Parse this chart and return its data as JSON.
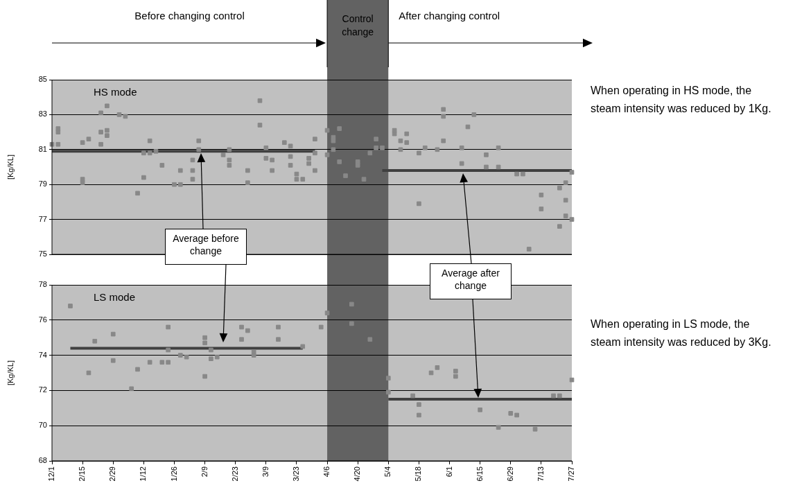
{
  "chart_data": [
    {
      "type": "scatter",
      "title": "HS mode",
      "ylabel": "[Kg/KL]",
      "ylim": [
        75,
        85
      ],
      "yticks": [
        75,
        77,
        79,
        81,
        83,
        85
      ],
      "grid": "y",
      "tick_labels": "y",
      "marker": "square",
      "categories": [
        "12/1",
        null,
        null,
        null,
        null,
        "2/15",
        null,
        null,
        null,
        null,
        "2/29",
        null,
        null,
        null,
        null,
        "1/12",
        null,
        null,
        null,
        null,
        "1/26",
        null,
        null,
        null,
        null,
        "2/9",
        null,
        null,
        null,
        null,
        "2/23",
        null,
        null,
        null,
        null,
        "3/9",
        null,
        null,
        null,
        null,
        "3/23",
        null,
        null,
        null,
        null,
        "4/6",
        null,
        null,
        null,
        null,
        "4/20",
        null,
        null,
        null,
        null,
        "5/4",
        null,
        null,
        null,
        null,
        "5/18",
        null,
        null,
        null,
        null,
        "6/1",
        null,
        null,
        null,
        null,
        "6/15",
        null,
        null,
        null,
        null,
        "6/29",
        null,
        null,
        null,
        null,
        "7/13",
        null,
        null,
        null,
        null,
        "7/27"
      ],
      "bands": [
        {
          "axis": "x",
          "from": "4/6",
          "to": "5/4",
          "label": "Control change",
          "color": "#626262"
        }
      ],
      "annotations": [
        "Before changing control",
        "After changing control",
        "When operating in HS mode, the steam intensity was reduced by 1Kg.",
        "Average before change",
        "Average after change"
      ],
      "series": [
        {
          "color": "#888888",
          "values": [
            81.3,
            82.2,
            null,
            null,
            null,
            79.1,
            81.6,
            null,
            82.0,
            82.1,
            null,
            83.0,
            82.9,
            null,
            78.5,
            80.8,
            80.8,
            80.9,
            80.1,
            null,
            79.0,
            79.0,
            null,
            79.8,
            81.0,
            null,
            null,
            null,
            80.7,
            81.0,
            null,
            null,
            79.8,
            null,
            83.8,
            81.1,
            80.4,
            null,
            81.4,
            81.2,
            79.6,
            79.3,
            80.2,
            79.8,
            null,
            82.1,
            81.7,
            82.2,
            79.5,
            null,
            80.3,
            79.3,
            80.8,
            81.6,
            81.1,
            null,
            82.1,
            81.5,
            81.9,
            null,
            80.8,
            81.1,
            null,
            81.0,
            81.5,
            null,
            null,
            81.1,
            82.3,
            83.0,
            null,
            80.7,
            null,
            80.0,
            null,
            null,
            79.6,
            79.6,
            75.3,
            null,
            78.4,
            null,
            null,
            76.6,
            78.1,
            79.7
          ]
        },
        {
          "color": "#888888",
          "values": [
            null,
            82.0,
            null,
            null,
            null,
            79.3,
            null,
            null,
            83.1,
            83.5,
            null,
            null,
            null,
            null,
            null,
            79.4,
            81.5,
            null,
            null,
            null,
            null,
            79.8,
            null,
            79.3,
            81.5,
            null,
            null,
            null,
            null,
            80.4,
            null,
            null,
            79.1,
            null,
            82.4,
            80.5,
            79.8,
            null,
            null,
            80.6,
            79.3,
            null,
            80.5,
            80.8,
            null,
            80.7,
            81.5,
            80.3,
            null,
            null,
            80.1,
            null,
            null,
            81.1,
            null,
            null,
            81.9,
            81.0,
            81.4,
            null,
            77.9,
            null,
            null,
            null,
            83.3,
            null,
            null,
            80.2,
            null,
            null,
            null,
            80.0,
            null,
            81.1,
            null,
            null,
            null,
            null,
            null,
            null,
            77.6,
            null,
            null,
            78.8,
            79.1,
            77.0
          ]
        },
        {
          "color": "#888888",
          "values": [
            null,
            81.3,
            null,
            null,
            null,
            81.4,
            null,
            null,
            81.3,
            81.8,
            null,
            null,
            null,
            null,
            null,
            null,
            null,
            null,
            null,
            null,
            null,
            null,
            null,
            80.4,
            null,
            null,
            null,
            null,
            null,
            80.1,
            null,
            null,
            null,
            null,
            null,
            null,
            null,
            null,
            null,
            80.1,
            null,
            null,
            null,
            81.6,
            null,
            null,
            81.0,
            null,
            null,
            null,
            null,
            null,
            null,
            null,
            null,
            null,
            null,
            null,
            null,
            null,
            null,
            null,
            null,
            null,
            82.9,
            null,
            null,
            null,
            null,
            null,
            null,
            null,
            null,
            null,
            null,
            null,
            null,
            null,
            null,
            null,
            null,
            null,
            null,
            null,
            77.2,
            null
          ]
        },
        {
          "type": "line",
          "color": "#404040",
          "marker": "none",
          "values": [
            80.9,
            80.9,
            80.9,
            80.9,
            80.9,
            80.9,
            80.9,
            80.9,
            80.9,
            80.9,
            80.9,
            80.9,
            80.9,
            80.9,
            80.9,
            80.9,
            80.9,
            80.9,
            80.9,
            80.9,
            80.9,
            80.9,
            80.9,
            80.9,
            80.9,
            80.9,
            80.9,
            80.9,
            80.9,
            80.9,
            80.9,
            80.9,
            80.9,
            80.9,
            80.9,
            80.9,
            80.9,
            80.9,
            80.9,
            80.9,
            80.9,
            80.9,
            80.9,
            80.9,
            null,
            null,
            null,
            null,
            null,
            null,
            null,
            null,
            null,
            null,
            null,
            null,
            null,
            null,
            null,
            null,
            null,
            null,
            null,
            null,
            null,
            null,
            null,
            null,
            null,
            null,
            null,
            null,
            null,
            null,
            null,
            null,
            null,
            null,
            null,
            null,
            null,
            null,
            null,
            null,
            null,
            null
          ]
        },
        {
          "type": "line",
          "color": "#404040",
          "values": [
            null,
            null,
            null,
            null,
            null,
            null,
            null,
            null,
            null,
            null,
            null,
            null,
            null,
            null,
            null,
            null,
            null,
            null,
            null,
            null,
            null,
            null,
            null,
            null,
            null,
            null,
            null,
            null,
            null,
            null,
            null,
            null,
            null,
            null,
            null,
            null,
            null,
            null,
            null,
            null,
            null,
            null,
            null,
            null,
            null,
            null,
            null,
            null,
            null,
            null,
            null,
            null,
            null,
            null,
            79.8,
            79.8,
            79.8,
            79.8,
            79.8,
            79.8,
            79.8,
            79.8,
            79.8,
            79.8,
            79.8,
            79.8,
            79.8,
            79.8,
            79.8,
            79.8,
            79.8,
            79.8,
            79.8,
            79.8,
            79.8,
            79.8,
            79.8,
            79.8,
            79.8,
            79.8,
            79.8,
            79.8,
            79.8,
            79.8,
            79.8,
            79.8
          ],
          "marker": "none"
        }
      ]
    },
    {
      "type": "scatter",
      "title": "LS mode",
      "ylabel": "[Kg/KL]",
      "ylim": [
        68,
        78
      ],
      "yticks": [
        68,
        70,
        72,
        74,
        76,
        78
      ],
      "grid": "y",
      "marker": "square",
      "categories": [
        "12/1",
        null,
        null,
        null,
        null,
        "2/15",
        null,
        null,
        null,
        null,
        "2/29",
        null,
        null,
        null,
        null,
        "1/12",
        null,
        null,
        null,
        null,
        "1/26",
        null,
        null,
        null,
        null,
        "2/9",
        null,
        null,
        null,
        null,
        "2/23",
        null,
        null,
        null,
        null,
        "3/9",
        null,
        null,
        null,
        null,
        "3/23",
        null,
        null,
        null,
        null,
        "4/6",
        null,
        null,
        null,
        null,
        "4/20",
        null,
        null,
        null,
        null,
        "5/4",
        null,
        null,
        null,
        null,
        "5/18",
        null,
        null,
        null,
        null,
        "6/1",
        null,
        null,
        null,
        null,
        "6/15",
        null,
        null,
        null,
        null,
        "6/29",
        null,
        null,
        null,
        null,
        "7/13",
        null,
        null,
        null,
        null,
        "7/27"
      ],
      "bands": [
        {
          "axis": "x",
          "from": "4/6",
          "to": "5/4",
          "color": "#626262"
        }
      ],
      "annotations": [
        "When operating in LS mode, the steam intensity was reduced by 3Kg."
      ],
      "series": [
        {
          "color": "#888888",
          "values": [
            null,
            null,
            null,
            76.8,
            null,
            null,
            73.0,
            74.8,
            null,
            null,
            75.2,
            null,
            null,
            72.1,
            73.2,
            null,
            73.6,
            null,
            73.6,
            73.6,
            null,
            74.0,
            73.9,
            null,
            null,
            72.8,
            74.3,
            73.9,
            null,
            null,
            null,
            74.9,
            75.4,
            74.0,
            null,
            null,
            null,
            75.6,
            null,
            null,
            null,
            74.5,
            null,
            null,
            75.6,
            76.4,
            null,
            null,
            null,
            76.9,
            null,
            null,
            74.9,
            null,
            null,
            72.7,
            null,
            null,
            null,
            71.7,
            71.2,
            null,
            73.0,
            73.3,
            null,
            null,
            72.8,
            null,
            null,
            null,
            70.9,
            null,
            null,
            69.9,
            null,
            70.7,
            70.6,
            null,
            null,
            69.8,
            null,
            null,
            71.7,
            71.7,
            null,
            72.6
          ]
        },
        {
          "color": "#888888",
          "values": [
            null,
            null,
            null,
            null,
            null,
            null,
            null,
            null,
            null,
            null,
            73.7,
            null,
            null,
            null,
            null,
            null,
            null,
            null,
            null,
            74.3,
            null,
            null,
            null,
            null,
            null,
            75.0,
            73.8,
            null,
            null,
            null,
            null,
            75.6,
            null,
            74.2,
            null,
            null,
            null,
            74.9,
            null,
            null,
            null,
            null,
            null,
            null,
            null,
            null,
            null,
            null,
            null,
            75.8,
            null,
            null,
            null,
            null,
            null,
            71.9,
            null,
            null,
            null,
            null,
            70.6,
            null,
            null,
            null,
            null,
            null,
            73.1,
            null,
            null,
            null,
            null,
            null,
            null,
            null,
            null,
            null,
            null,
            null,
            null,
            null,
            null,
            null,
            null,
            null,
            null,
            null
          ]
        },
        {
          "color": "#888888",
          "values": [
            null,
            null,
            null,
            null,
            null,
            null,
            null,
            null,
            null,
            null,
            null,
            null,
            null,
            null,
            null,
            null,
            null,
            null,
            null,
            75.6,
            null,
            null,
            null,
            null,
            null,
            74.7,
            null,
            null,
            null,
            null,
            null,
            null,
            null,
            null,
            null,
            null,
            null,
            null,
            null,
            null,
            null,
            null,
            null,
            null,
            null,
            null,
            null,
            null,
            null,
            null,
            null,
            null,
            null,
            null,
            null,
            null,
            null,
            null,
            null,
            null,
            null,
            null,
            null,
            null,
            null,
            null,
            null,
            null,
            null,
            null,
            null,
            null,
            null,
            null,
            null,
            null,
            null,
            null,
            null,
            null,
            null,
            null,
            null,
            null,
            null,
            null
          ]
        },
        {
          "type": "line",
          "color": "#404040",
          "marker": "none",
          "values": [
            null,
            null,
            null,
            74.4,
            74.4,
            74.4,
            74.4,
            74.4,
            74.4,
            74.4,
            74.4,
            74.4,
            74.4,
            74.4,
            74.4,
            74.4,
            74.4,
            74.4,
            74.4,
            74.4,
            74.4,
            74.4,
            74.4,
            74.4,
            74.4,
            74.4,
            74.4,
            74.4,
            74.4,
            74.4,
            74.4,
            74.4,
            74.4,
            74.4,
            74.4,
            74.4,
            74.4,
            74.4,
            74.4,
            74.4,
            74.4,
            74.4,
            null,
            null,
            null,
            null,
            null,
            null,
            null,
            null,
            null,
            null,
            null,
            null,
            null,
            null,
            null,
            null,
            null,
            null,
            null,
            null,
            null,
            null,
            null,
            null,
            null,
            null,
            null,
            null,
            null,
            null,
            null,
            null,
            null,
            null,
            null,
            null,
            null,
            null,
            null,
            null,
            null,
            null,
            null,
            null
          ]
        },
        {
          "type": "line",
          "color": "#404040",
          "values": [
            null,
            null,
            null,
            null,
            null,
            null,
            null,
            null,
            null,
            null,
            null,
            null,
            null,
            null,
            null,
            null,
            null,
            null,
            null,
            null,
            null,
            null,
            null,
            null,
            null,
            null,
            null,
            null,
            null,
            null,
            null,
            null,
            null,
            null,
            null,
            null,
            null,
            null,
            null,
            null,
            null,
            null,
            null,
            null,
            null,
            null,
            null,
            null,
            null,
            null,
            null,
            null,
            null,
            null,
            null,
            71.5,
            71.5,
            71.5,
            71.5,
            71.5,
            71.5,
            71.5,
            71.5,
            71.5,
            71.5,
            71.5,
            71.5,
            71.5,
            71.5,
            71.5,
            71.5,
            71.5,
            71.5,
            71.5,
            71.5,
            71.5,
            71.5,
            71.5,
            71.5,
            71.5,
            71.5,
            71.5,
            71.5,
            71.5,
            71.5,
            71.5
          ],
          "marker": "none"
        }
      ]
    }
  ]
}
